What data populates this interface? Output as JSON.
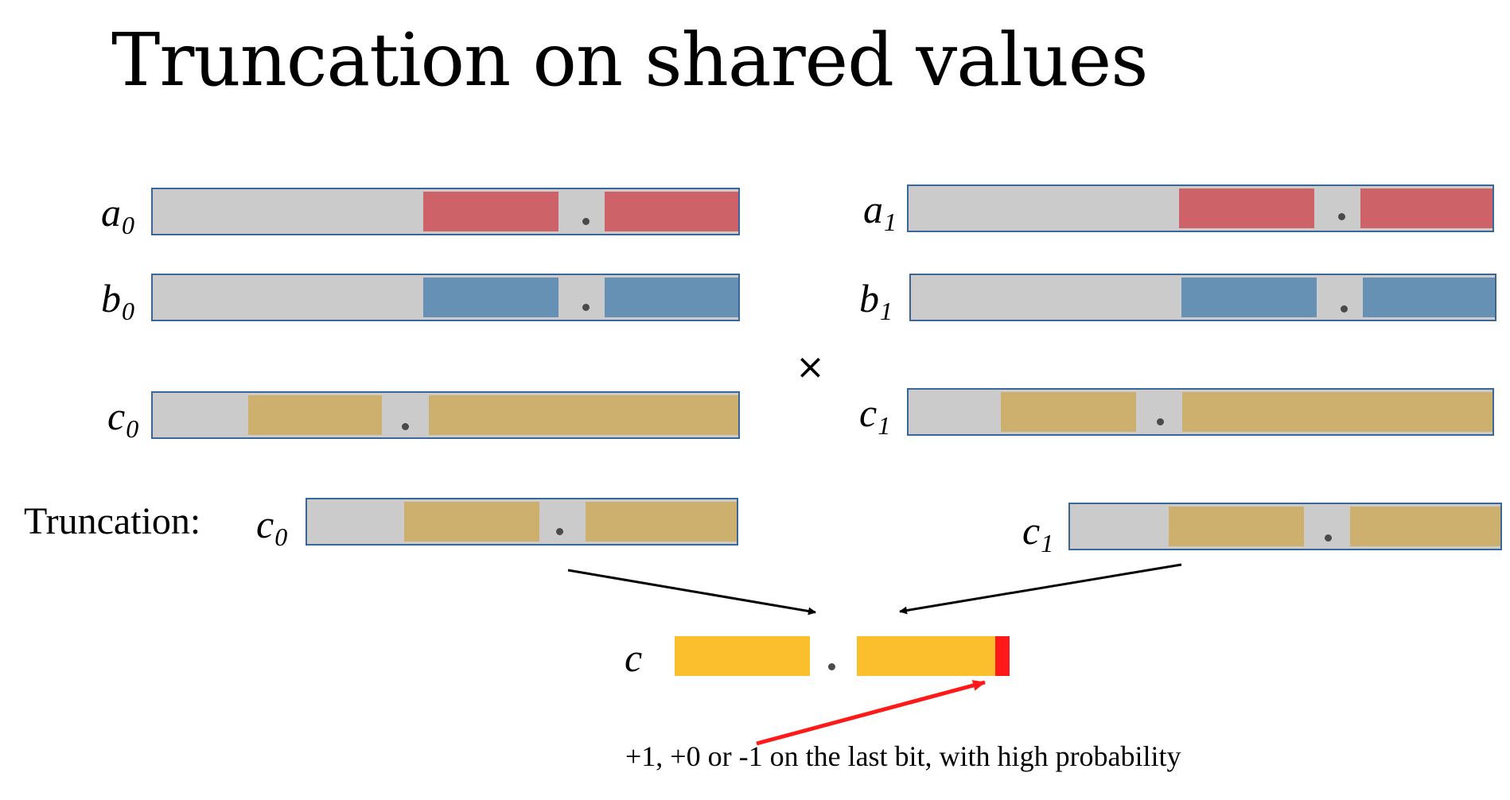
{
  "title": "Truncation on shared values",
  "labels": {
    "a0": {
      "base": "a",
      "sub": "0"
    },
    "b0": {
      "base": "b",
      "sub": "0"
    },
    "c0": {
      "base": "c",
      "sub": "0"
    },
    "a1": {
      "base": "a",
      "sub": "1"
    },
    "b1": {
      "base": "b",
      "sub": "1"
    },
    "c1": {
      "base": "c",
      "sub": "1"
    },
    "tc0": {
      "base": "c",
      "sub": "0"
    },
    "tc1": {
      "base": "c",
      "sub": "1"
    },
    "c": {
      "base": "c"
    }
  },
  "truncation_label": "Truncation:",
  "operator": "×",
  "decimal_point": ".",
  "note": "+1, +0 or -1 on the last bit, with high probability",
  "colors": {
    "a_share": "#cd6369",
    "b_share": "#6690b4",
    "c_share": "#cdb06e",
    "c_result": "#fbbe2d",
    "error_bit": "#ff1a1a",
    "bar_background": "#cbcbcb",
    "bar_border": "#3b6798"
  }
}
